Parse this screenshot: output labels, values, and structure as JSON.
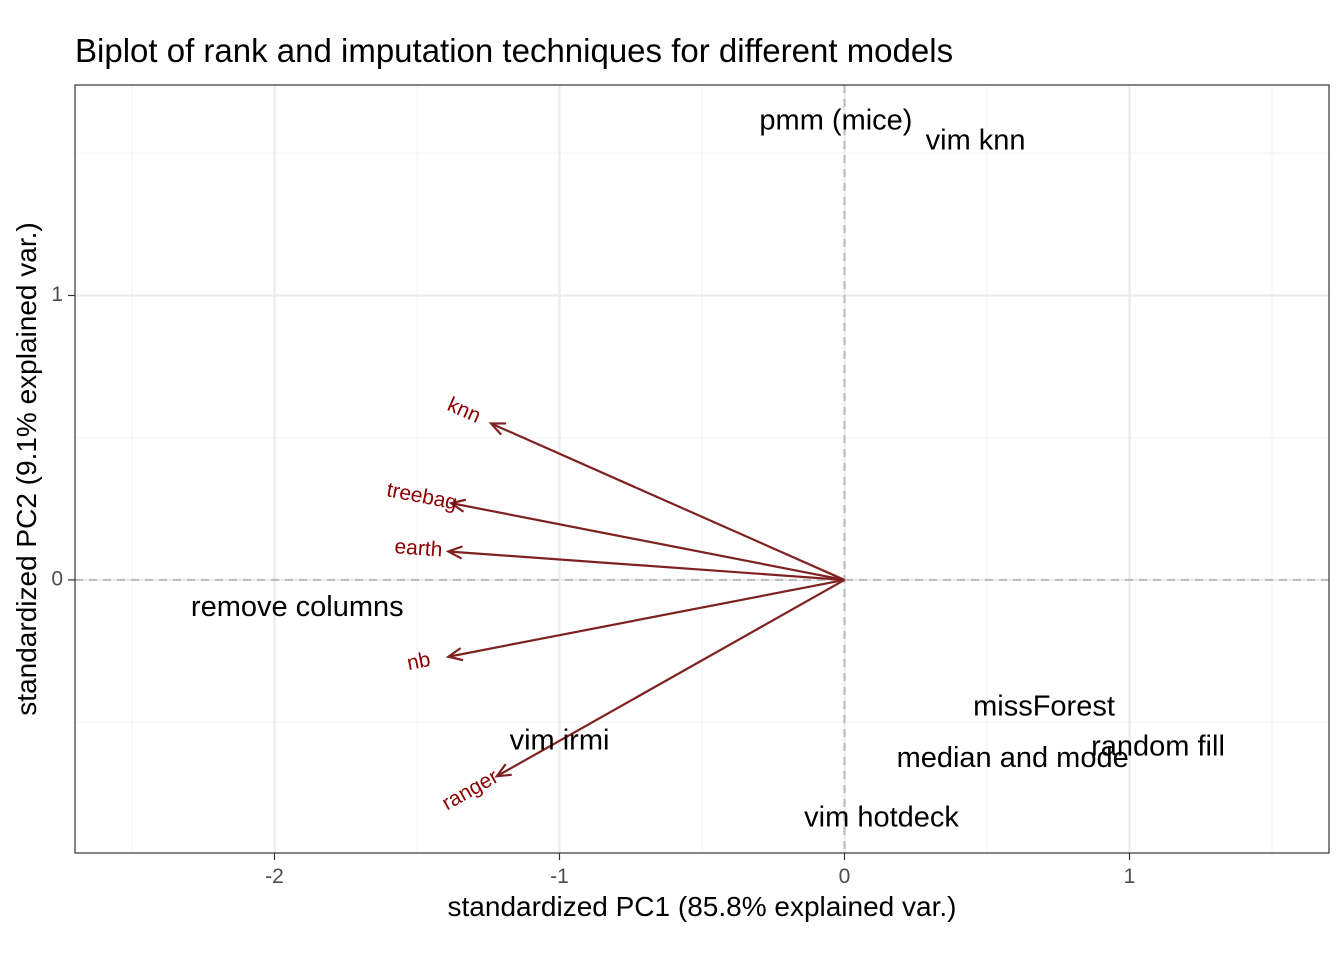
{
  "chart_data": {
    "type": "scatter",
    "title": "Biplot of rank and imputation techniques for different models",
    "xlabel": "standardized PC1 (85.8% explained var.)",
    "ylabel": "standardized PC2 (9.1% explained var.)",
    "xlim": [
      -2.7,
      1.7
    ],
    "ylim": [
      -0.96,
      1.74
    ],
    "x_ticks": [
      -2,
      -1,
      0,
      1
    ],
    "y_ticks": [
      0,
      1
    ],
    "x_tick_labels": [
      "-2",
      "-1",
      "0",
      "1"
    ],
    "y_tick_labels": [
      "0",
      "1"
    ],
    "grid": true,
    "reference_lines": {
      "x": 0,
      "y": 0
    },
    "points": [
      {
        "label": "pmm (mice)",
        "x": -0.03,
        "y": 1.61
      },
      {
        "label": "vim knn",
        "x": 0.46,
        "y": 1.54
      },
      {
        "label": "remove columns",
        "x": -1.92,
        "y": -0.1
      },
      {
        "label": "missForest",
        "x": 0.7,
        "y": -0.45
      },
      {
        "label": "random fill",
        "x": 1.1,
        "y": -0.59
      },
      {
        "label": "median and mode",
        "x": 0.59,
        "y": -0.63
      },
      {
        "label": "vim irmi",
        "x": -1.0,
        "y": -0.57
      },
      {
        "label": "vim hotdeck",
        "x": 0.13,
        "y": -0.84
      }
    ],
    "loadings": [
      {
        "name": "knn",
        "x": -1.24,
        "y": 0.55
      },
      {
        "name": "treebag",
        "x": -1.38,
        "y": 0.27
      },
      {
        "name": "earth",
        "x": -1.39,
        "y": 0.1
      },
      {
        "name": "nb",
        "x": -1.39,
        "y": -0.27
      },
      {
        "name": "ranger",
        "x": -1.22,
        "y": -0.69
      }
    ],
    "colors": {
      "arrow": "#7f2121",
      "arrow_label": "#8b0000",
      "text": "#000000",
      "axis_text": "#4d4d4d",
      "grid_major": "#ebebeb",
      "grid_minor": "#f5f5f5",
      "reference_line": "#bdbdbd",
      "panel_border": "#333333"
    }
  }
}
